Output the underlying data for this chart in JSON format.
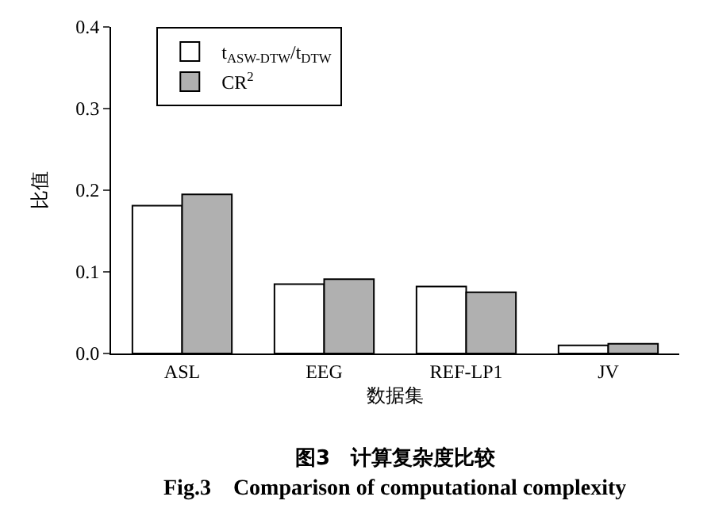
{
  "chart_data": {
    "type": "bar",
    "categories": [
      "ASL",
      "EEG",
      "REF-LP1",
      "JV"
    ],
    "series": [
      {
        "name": "t$_{ASW-DTW}$/t$_{DTW}$",
        "color": "#ffffff",
        "values": [
          0.181,
          0.085,
          0.082,
          0.01
        ]
      },
      {
        "name": "CR$^{2}$",
        "color": "#b0b0b0",
        "values": [
          0.195,
          0.091,
          0.075,
          0.012
        ]
      }
    ],
    "xlabel": "数据集",
    "ylabel": "比值",
    "ylim": [
      0,
      0.4
    ],
    "yticks": [
      {
        "value": 0,
        "label": "0.0"
      },
      {
        "value": 0.1,
        "label": "0.1"
      },
      {
        "value": 0.2,
        "label": "0.2"
      },
      {
        "value": 0.3,
        "label": "0.3"
      },
      {
        "value": 0.4,
        "label": "0.4"
      }
    ],
    "annotations": [
      "图3　计算复杂度比较",
      "Fig.3　Comparison of computational complexity"
    ],
    "legend": "top left"
  }
}
